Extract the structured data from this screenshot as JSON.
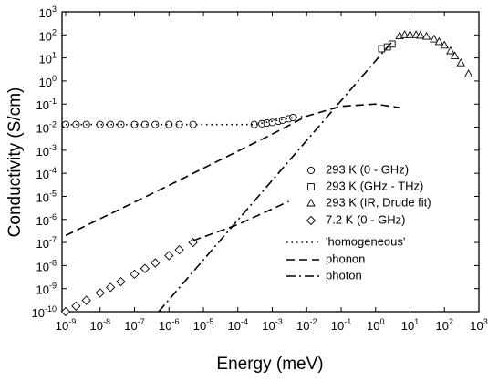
{
  "chart_data": {
    "type": "scatter",
    "xlabel": "Energy (meV)",
    "ylabel": "Conductivity (S/cm)",
    "xscale": "log",
    "yscale": "log",
    "xlim": [
      1e-09,
      1000
    ],
    "ylim": [
      1e-10,
      1000
    ],
    "xticks": [
      {
        "value": 1e-09,
        "label": "10",
        "exponent": "-9"
      },
      {
        "value": 1e-08,
        "label": "10",
        "exponent": "-8"
      },
      {
        "value": 1e-07,
        "label": "10",
        "exponent": "-7"
      },
      {
        "value": 1e-06,
        "label": "10",
        "exponent": "-6"
      },
      {
        "value": 1e-05,
        "label": "10",
        "exponent": "-5"
      },
      {
        "value": 0.0001,
        "label": "10",
        "exponent": "-4"
      },
      {
        "value": 0.001,
        "label": "10",
        "exponent": "-3"
      },
      {
        "value": 0.01,
        "label": "10",
        "exponent": "-2"
      },
      {
        "value": 0.1,
        "label": "10",
        "exponent": "-1"
      },
      {
        "value": 1,
        "label": "10",
        "exponent": "0"
      },
      {
        "value": 10,
        "label": "10",
        "exponent": "1"
      },
      {
        "value": 100,
        "label": "10",
        "exponent": "2"
      },
      {
        "value": 1000,
        "label": "10",
        "exponent": "3"
      }
    ],
    "yticks": [
      {
        "value": 1e-10,
        "label": "10",
        "exponent": "-10"
      },
      {
        "value": 1e-09,
        "label": "10",
        "exponent": "-9"
      },
      {
        "value": 1e-08,
        "label": "10",
        "exponent": "-8"
      },
      {
        "value": 1e-07,
        "label": "10",
        "exponent": "-7"
      },
      {
        "value": 1e-06,
        "label": "10",
        "exponent": "-6"
      },
      {
        "value": 1e-05,
        "label": "10",
        "exponent": "-5"
      },
      {
        "value": 0.0001,
        "label": "10",
        "exponent": "-4"
      },
      {
        "value": 0.001,
        "label": "10",
        "exponent": "-3"
      },
      {
        "value": 0.01,
        "label": "10",
        "exponent": "-2"
      },
      {
        "value": 0.1,
        "label": "10",
        "exponent": "-1"
      },
      {
        "value": 1,
        "label": "10",
        "exponent": "0"
      },
      {
        "value": 10,
        "label": "10",
        "exponent": "1"
      },
      {
        "value": 100,
        "label": "10",
        "exponent": "2"
      },
      {
        "value": 1000,
        "label": "10",
        "exponent": "3"
      }
    ],
    "legend": "right",
    "color": "#000000",
    "series": [
      {
        "name": "293 K (0 - GHz)",
        "kind": "scatter",
        "marker": "circle",
        "x": [
          1e-09,
          2e-09,
          4e-09,
          1e-08,
          2e-08,
          4e-08,
          1e-07,
          2e-07,
          4e-07,
          1e-06,
          2e-06,
          5e-06,
          0.0003,
          0.0005,
          0.0007,
          0.001,
          0.0015,
          0.002,
          0.003,
          0.004
        ],
        "values": [
          0.013,
          0.013,
          0.013,
          0.013,
          0.013,
          0.013,
          0.013,
          0.013,
          0.013,
          0.013,
          0.013,
          0.013,
          0.013,
          0.014,
          0.015,
          0.016,
          0.018,
          0.02,
          0.023,
          0.026
        ]
      },
      {
        "name": "293 K (GHz - THz)",
        "kind": "scatter",
        "marker": "square",
        "x": [
          1.5,
          2.2,
          3
        ],
        "values": [
          25,
          30,
          40
        ]
      },
      {
        "name": "293 K (IR, Drude fit)",
        "kind": "scatter",
        "marker": "triangle",
        "x": [
          5,
          7,
          10,
          15,
          20,
          30,
          50,
          70,
          100,
          150,
          200,
          300,
          500
        ],
        "values": [
          90,
          100,
          100,
          100,
          95,
          85,
          65,
          50,
          35,
          20,
          12,
          6,
          2
        ]
      },
      {
        "name": "7.2  K (0 - GHz)",
        "kind": "scatter",
        "marker": "diamond",
        "x": [
          1e-09,
          2e-09,
          4e-09,
          1e-08,
          2e-08,
          4e-08,
          1e-07,
          2e-07,
          4e-07,
          1e-06,
          2e-06,
          5e-06
        ],
        "values": [
          1e-10,
          1.75e-10,
          3.1e-10,
          6.5e-10,
          1.13e-09,
          2e-09,
          4.2e-09,
          7.4e-09,
          1.3e-08,
          2.7e-08,
          4.8e-08,
          1e-07
        ]
      },
      {
        "name": "'homogeneous'",
        "kind": "line",
        "dash": "dotted",
        "x": [
          1e-09,
          0.0003,
          0.004,
          0.01
        ],
        "values": [
          0.013,
          0.013,
          0.026,
          0.03
        ]
      },
      {
        "name": "phonon",
        "kind": "line",
        "dash": "dashed",
        "x": [
          1e-09,
          1e-06,
          0.001,
          0.01,
          0.1,
          1,
          5,
          null,
          5e-06,
          0.0001,
          0.003
        ],
        "values": [
          2e-07,
          3e-05,
          0.005,
          0.03,
          0.08,
          0.1,
          0.07,
          null,
          1.2e-07,
          6e-07,
          6e-06
        ]
      },
      {
        "name": "photon",
        "kind": "line",
        "dash": "dashdot",
        "x": [
          5e-07,
          3
        ],
        "values": [
          1e-10,
          50
        ]
      }
    ]
  }
}
